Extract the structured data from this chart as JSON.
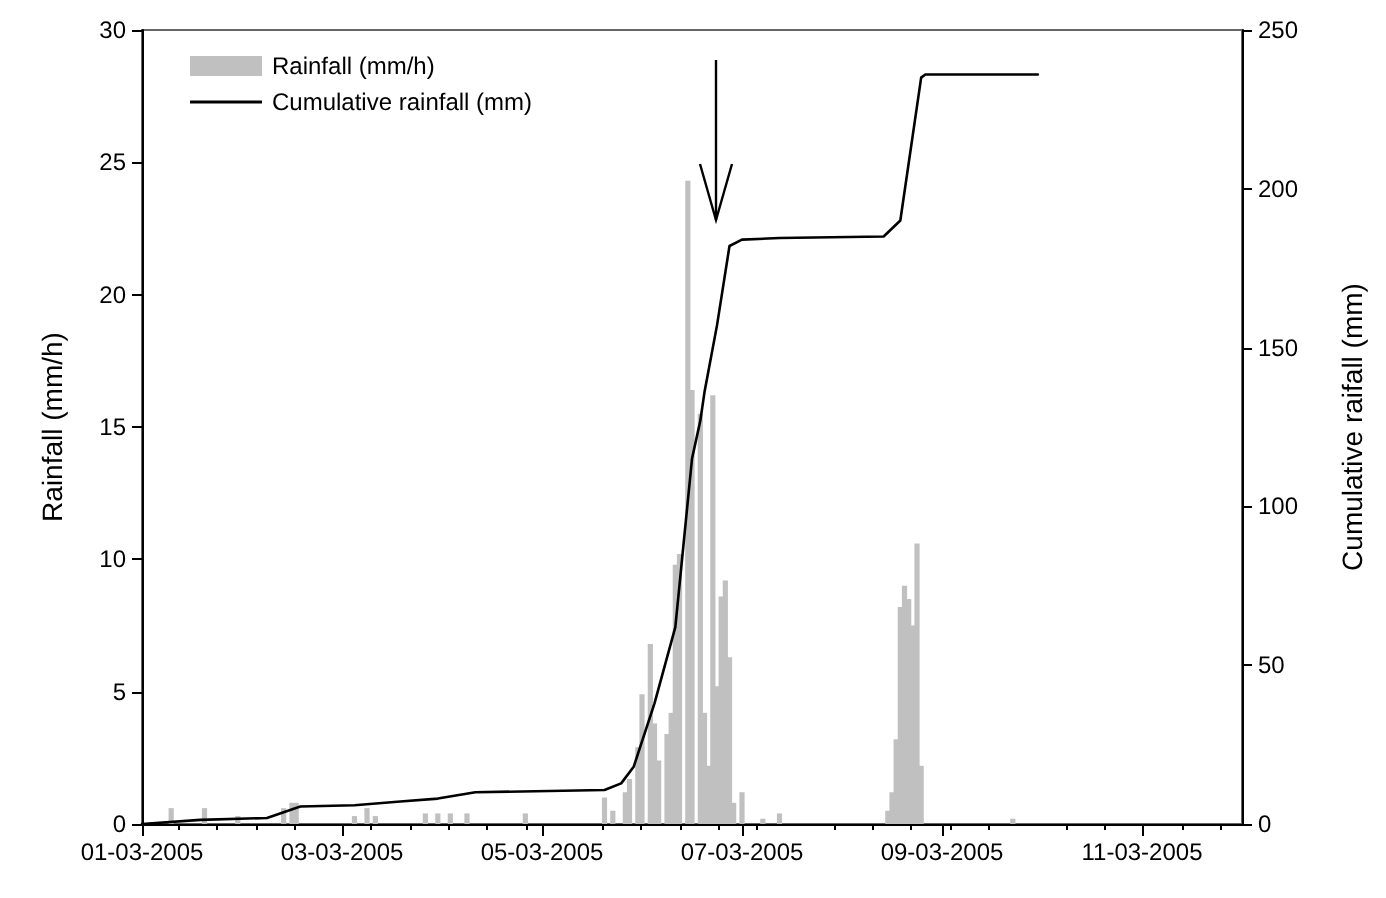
{
  "chart_data": {
    "type": "bar",
    "ylabel": "Rainfall (mm/h)",
    "y2label": "Cumulative raifall (mm)",
    "legend": "top left",
    "grid": false,
    "xlim": [
      "2005-03-01",
      "2005-03-12"
    ],
    "xticks": [
      {
        "value": "2005-03-01",
        "label": "01-03-2005"
      },
      {
        "value": "2005-03-03",
        "label": "03-03-2005"
      },
      {
        "value": "2005-03-05",
        "label": "05-03-2005"
      },
      {
        "value": "2005-03-07",
        "label": "07-03-2005"
      },
      {
        "value": "2005-03-09",
        "label": "09-03-2005"
      },
      {
        "value": "2005-03-11",
        "label": "11-03-2005"
      }
    ],
    "ylim": [
      0,
      30
    ],
    "yticks": [
      0,
      5,
      10,
      15,
      20,
      25,
      30
    ],
    "y2lim": [
      0,
      250
    ],
    "y2ticks": [
      0,
      50,
      100,
      150,
      200,
      250
    ],
    "series": [
      {
        "name": "Rainfall (mm/h)",
        "color": "#c0c0c0",
        "x": [
          "2005-03-01T07:00",
          "2005-03-01T15:00",
          "2005-03-01T23:00",
          "2005-03-02T10:00",
          "2005-03-02T12:00",
          "2005-03-02T13:00",
          "2005-03-03T03:00",
          "2005-03-03T06:00",
          "2005-03-03T08:00",
          "2005-03-03T20:00",
          "2005-03-03T23:00",
          "2005-03-04T02:00",
          "2005-03-04T06:00",
          "2005-03-04T20:00",
          "2005-03-05T15:00",
          "2005-03-05T17:00",
          "2005-03-05T20:00",
          "2005-03-05T21:00",
          "2005-03-05T23:00",
          "2005-03-06T00:00",
          "2005-03-06T02:00",
          "2005-03-06T03:00",
          "2005-03-06T04:00",
          "2005-03-06T06:00",
          "2005-03-06T07:00",
          "2005-03-06T08:00",
          "2005-03-06T09:00",
          "2005-03-06T11:00",
          "2005-03-06T12:00",
          "2005-03-06T14:00",
          "2005-03-06T15:00",
          "2005-03-06T16:00",
          "2005-03-06T17:00",
          "2005-03-06T18:00",
          "2005-03-06T19:00",
          "2005-03-06T20:00",
          "2005-03-06T21:00",
          "2005-03-06T22:00",
          "2005-03-07T00:00",
          "2005-03-07T05:00",
          "2005-03-07T09:00",
          "2005-03-08T11:00",
          "2005-03-08T12:00",
          "2005-03-08T13:00",
          "2005-03-08T14:00",
          "2005-03-08T15:00",
          "2005-03-08T16:00",
          "2005-03-08T17:00",
          "2005-03-08T18:00",
          "2005-03-08T19:00",
          "2005-03-09T17:00"
        ],
        "values": [
          0.6,
          0.6,
          0.3,
          0.6,
          0.8,
          0.8,
          0.3,
          0.6,
          0.3,
          0.4,
          0.4,
          0.4,
          0.4,
          0.4,
          1.0,
          0.5,
          1.2,
          1.7,
          2.9,
          4.9,
          6.8,
          3.8,
          2.4,
          3.4,
          4.2,
          9.8,
          10.2,
          24.3,
          16.4,
          15.5,
          4.2,
          2.2,
          16.2,
          5.2,
          8.6,
          9.2,
          6.3,
          0.8,
          1.2,
          0.2,
          0.4,
          0.5,
          1.2,
          3.2,
          8.2,
          9.0,
          8.5,
          7.5,
          10.6,
          2.2,
          0.2
        ]
      },
      {
        "name": "Cumulative rainfall (mm)",
        "type": "line",
        "axis": "y2",
        "color": "#000000",
        "marker": "none",
        "line_style": "solid",
        "x": [
          "2005-03-01T00:00",
          "2005-03-01T14:00",
          "2005-03-02T06:00",
          "2005-03-02T14:00",
          "2005-03-03T03:00",
          "2005-03-03T14:00",
          "2005-03-03T23:00",
          "2005-03-04T08:00",
          "2005-03-05T15:00",
          "2005-03-05T19:00",
          "2005-03-05T22:00",
          "2005-03-06T03:00",
          "2005-03-06T08:00",
          "2005-03-06T12:00",
          "2005-03-06T14:00",
          "2005-03-06T15:00",
          "2005-03-06T18:00",
          "2005-03-06T21:00",
          "2005-03-07T00:00",
          "2005-03-07T09:00",
          "2005-03-08T10:00",
          "2005-03-08T14:00",
          "2005-03-08T19:00",
          "2005-03-08T20:00",
          "2005-03-09T23:00"
        ],
        "values": [
          0,
          1.3,
          1.9,
          5.5,
          5.9,
          7.1,
          8.0,
          10,
          10.7,
          12.8,
          18,
          38,
          62,
          115,
          127,
          136,
          157,
          182,
          184,
          184.5,
          185,
          190,
          235,
          236,
          236
        ]
      }
    ]
  }
}
